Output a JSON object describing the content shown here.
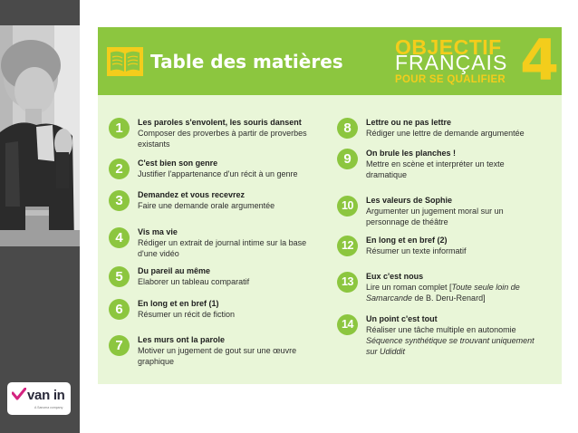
{
  "header": {
    "title": "Table des matières",
    "brand_line1": "OBJECTIF",
    "brand_line2": "FRANÇAIS",
    "brand_line3": "POUR SE QUALIFIER",
    "brand_number": "4"
  },
  "logo": {
    "name": "van in",
    "tagline": "A Sanoma company"
  },
  "colors": {
    "green": "#8cc63f",
    "light_green": "#e9f6d8",
    "yellow": "#f3cd1c",
    "sidebar": "#4a4a4a"
  },
  "entries": [
    {
      "num": "1",
      "title": "Les paroles s'envolent, les souris dansent",
      "desc": "Composer des proverbes à partir de proverbes existants"
    },
    {
      "num": "2",
      "title": "C'est bien son genre",
      "desc": "Justifier l'appartenance d'un récit à un genre"
    },
    {
      "num": "3",
      "title": "Demandez et vous recevrez",
      "desc": "Faire une demande orale argumentée"
    },
    {
      "num": "4",
      "title": "Vis ma vie",
      "desc": "Rédiger un extrait de journal intime sur la base d'une vidéo"
    },
    {
      "num": "5",
      "title": "Du pareil au même",
      "desc": "Elaborer un tableau comparatif"
    },
    {
      "num": "6",
      "title": "En long et en bref (1)",
      "desc": "Résumer un récit de fiction"
    },
    {
      "num": "7",
      "title": "Les murs ont la parole",
      "desc": "Motiver un jugement de gout sur une œuvre graphique"
    },
    {
      "num": "8",
      "title": "Lettre ou ne pas lettre",
      "desc": "Rédiger une lettre de demande argumentée"
    },
    {
      "num": "9",
      "title": "On brule les planches !",
      "desc": "Mettre en scène et interpréter un texte dramatique"
    },
    {
      "num": "10",
      "title": "Les valeurs de Sophie",
      "desc": "Argumenter un jugement moral sur un personnage de théâtre"
    },
    {
      "num": "12",
      "title": "En long et en bref (2)",
      "desc": "Résumer un texte informatif"
    },
    {
      "num": "13",
      "title": "Eux c'est nous",
      "desc_a": "Lire un roman complet [",
      "desc_b": "Toute seule loin de Samarcande",
      "desc_c": " de B. Deru-Renard]"
    },
    {
      "num": "14",
      "title": "Un point c'est tout",
      "desc": "Réaliser une tâche multiple en autonomie",
      "desc2": "Séquence synthétique se trouvant uniquement sur Udiddit"
    }
  ]
}
